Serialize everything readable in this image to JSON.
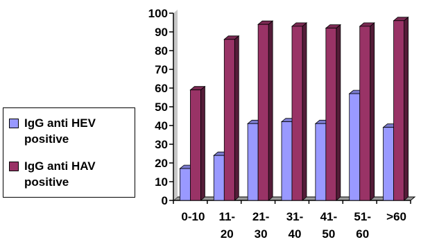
{
  "chart_data": {
    "type": "bar",
    "categories": [
      "0-10",
      "11-\n20",
      "21-\n30",
      "31-\n40",
      "41-\n50",
      "51-\n60",
      ">60"
    ],
    "series": [
      {
        "name": "IgG anti HEV positive",
        "values": [
          17,
          24,
          41,
          42,
          41,
          57,
          39
        ],
        "color": "#9999ff"
      },
      {
        "name": "IgG anti HAV positive",
        "values": [
          59,
          86,
          94,
          93,
          92,
          93,
          96
        ],
        "color": "#993366"
      }
    ],
    "ylim": [
      0,
      100
    ],
    "yticks": [
      0,
      10,
      20,
      30,
      40,
      50,
      60,
      70,
      80,
      90,
      100
    ],
    "title": "",
    "xlabel": "",
    "ylabel": "",
    "grid": false,
    "legend": "left",
    "style": "3d-clustered-bar"
  }
}
